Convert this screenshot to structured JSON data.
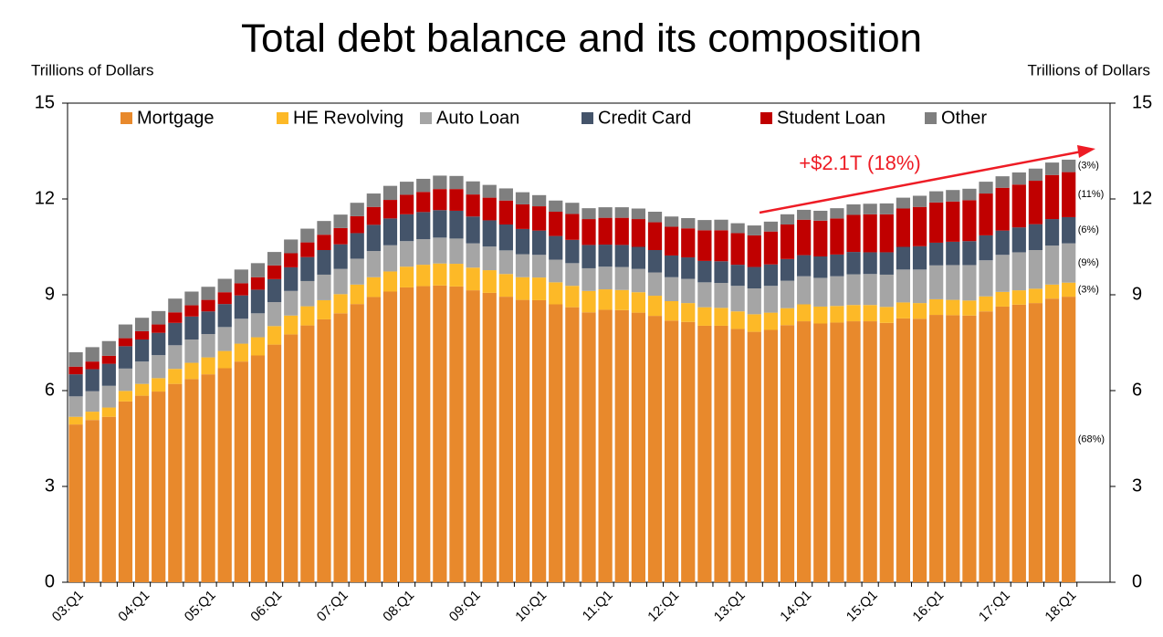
{
  "chart_data": {
    "type": "stacked_bar",
    "title": "Total debt balance and its composition",
    "y_label": "Trillions of Dollars",
    "y2_label": "Trillions of Dollars",
    "annotation": "+$2.1T (18%)",
    "categories": [
      "03:Q1",
      null,
      null,
      null,
      "04:Q1",
      null,
      null,
      null,
      "05:Q1",
      null,
      null,
      null,
      "06:Q1",
      null,
      null,
      null,
      "07:Q1",
      null,
      null,
      null,
      "08:Q1",
      null,
      null,
      null,
      "09:Q1",
      null,
      null,
      null,
      "10:Q1",
      null,
      null,
      null,
      "11:Q1",
      null,
      null,
      null,
      "12:Q1",
      null,
      null,
      null,
      "13:Q1",
      null,
      null,
      null,
      "14:Q1",
      null,
      null,
      null,
      "15:Q1",
      null,
      null,
      null,
      "16:Q1",
      null,
      null,
      null,
      "17:Q1",
      null,
      null,
      null,
      "18:Q1"
    ],
    "series": [
      {
        "name": "Mortgage",
        "color": "#e8892c",
        "share_label": "(68%)",
        "values": [
          4.94,
          5.08,
          5.18,
          5.66,
          5.84,
          5.97,
          6.21,
          6.36,
          6.51,
          6.7,
          6.91,
          7.1,
          7.44,
          7.76,
          8.04,
          8.23,
          8.42,
          8.71,
          8.93,
          9.1,
          9.23,
          9.27,
          9.29,
          9.26,
          9.14,
          9.06,
          8.94,
          8.84,
          8.83,
          8.7,
          8.61,
          8.45,
          8.53,
          8.52,
          8.44,
          8.34,
          8.19,
          8.15,
          8.03,
          8.03,
          7.93,
          7.84,
          7.9,
          8.05,
          8.17,
          8.1,
          8.13,
          8.17,
          8.17,
          8.12,
          8.26,
          8.25,
          8.37,
          8.36,
          8.35,
          8.48,
          8.63,
          8.69,
          8.74,
          8.88,
          8.94
        ]
      },
      {
        "name": "HE Revolving",
        "color": "#fdb927",
        "share_label": "(3%)",
        "values": [
          0.24,
          0.26,
          0.29,
          0.33,
          0.37,
          0.42,
          0.47,
          0.51,
          0.53,
          0.54,
          0.56,
          0.57,
          0.58,
          0.59,
          0.6,
          0.6,
          0.6,
          0.61,
          0.62,
          0.63,
          0.65,
          0.67,
          0.69,
          0.71,
          0.71,
          0.71,
          0.71,
          0.71,
          0.71,
          0.69,
          0.67,
          0.67,
          0.64,
          0.63,
          0.64,
          0.63,
          0.61,
          0.59,
          0.58,
          0.56,
          0.55,
          0.55,
          0.54,
          0.53,
          0.53,
          0.53,
          0.52,
          0.51,
          0.51,
          0.5,
          0.5,
          0.49,
          0.49,
          0.48,
          0.47,
          0.47,
          0.46,
          0.45,
          0.45,
          0.44,
          0.44
        ]
      },
      {
        "name": "Auto Loan",
        "color": "#a5a5a5",
        "share_label": "(9%)",
        "values": [
          0.64,
          0.64,
          0.68,
          0.7,
          0.7,
          0.72,
          0.74,
          0.73,
          0.73,
          0.75,
          0.78,
          0.75,
          0.75,
          0.77,
          0.79,
          0.8,
          0.79,
          0.81,
          0.82,
          0.82,
          0.8,
          0.8,
          0.81,
          0.79,
          0.76,
          0.74,
          0.74,
          0.72,
          0.71,
          0.71,
          0.71,
          0.71,
          0.71,
          0.72,
          0.73,
          0.73,
          0.75,
          0.76,
          0.78,
          0.78,
          0.8,
          0.81,
          0.84,
          0.86,
          0.88,
          0.9,
          0.93,
          0.96,
          0.97,
          1.01,
          1.03,
          1.05,
          1.06,
          1.09,
          1.11,
          1.13,
          1.16,
          1.19,
          1.21,
          1.22,
          1.23
        ]
      },
      {
        "name": "Credit Card",
        "color": "#44546a",
        "share_label": "(6%)",
        "values": [
          0.69,
          0.69,
          0.69,
          0.7,
          0.69,
          0.7,
          0.7,
          0.72,
          0.71,
          0.72,
          0.73,
          0.74,
          0.72,
          0.74,
          0.75,
          0.77,
          0.77,
          0.8,
          0.82,
          0.84,
          0.84,
          0.85,
          0.86,
          0.87,
          0.84,
          0.82,
          0.81,
          0.79,
          0.76,
          0.74,
          0.73,
          0.73,
          0.69,
          0.69,
          0.69,
          0.7,
          0.68,
          0.67,
          0.67,
          0.68,
          0.66,
          0.67,
          0.67,
          0.68,
          0.66,
          0.67,
          0.68,
          0.7,
          0.68,
          0.7,
          0.71,
          0.73,
          0.71,
          0.73,
          0.75,
          0.78,
          0.76,
          0.78,
          0.81,
          0.83,
          0.82
        ]
      },
      {
        "name": "Student Loan",
        "color": "#c00000",
        "share_label": "(11%)",
        "values": [
          0.24,
          0.24,
          0.25,
          0.25,
          0.26,
          0.26,
          0.33,
          0.35,
          0.36,
          0.37,
          0.38,
          0.39,
          0.43,
          0.44,
          0.46,
          0.48,
          0.51,
          0.53,
          0.56,
          0.58,
          0.61,
          0.63,
          0.66,
          0.68,
          0.69,
          0.71,
          0.75,
          0.77,
          0.76,
          0.76,
          0.81,
          0.81,
          0.84,
          0.85,
          0.87,
          0.87,
          0.9,
          0.91,
          0.96,
          0.97,
          0.99,
          0.99,
          1.03,
          1.08,
          1.11,
          1.12,
          1.13,
          1.16,
          1.19,
          1.19,
          1.2,
          1.23,
          1.26,
          1.26,
          1.28,
          1.31,
          1.34,
          1.34,
          1.36,
          1.38,
          1.41
        ]
      },
      {
        "name": "Other",
        "color": "#7f7f7f",
        "share_label": "(3%)",
        "values": [
          0.45,
          0.45,
          0.46,
          0.43,
          0.42,
          0.42,
          0.43,
          0.43,
          0.41,
          0.42,
          0.43,
          0.44,
          0.42,
          0.43,
          0.43,
          0.43,
          0.42,
          0.42,
          0.42,
          0.44,
          0.41,
          0.41,
          0.42,
          0.41,
          0.41,
          0.4,
          0.38,
          0.38,
          0.35,
          0.35,
          0.35,
          0.34,
          0.33,
          0.33,
          0.33,
          0.33,
          0.32,
          0.32,
          0.32,
          0.33,
          0.31,
          0.31,
          0.31,
          0.32,
          0.31,
          0.31,
          0.32,
          0.33,
          0.33,
          0.34,
          0.34,
          0.35,
          0.35,
          0.36,
          0.36,
          0.37,
          0.36,
          0.38,
          0.38,
          0.39,
          0.39
        ]
      }
    ],
    "ylim": [
      0,
      15
    ],
    "yticks": [
      0,
      3,
      6,
      9,
      12,
      15
    ],
    "y2lim": [
      0,
      15
    ],
    "y2ticks": [
      0,
      3,
      6,
      9,
      12,
      15
    ]
  }
}
